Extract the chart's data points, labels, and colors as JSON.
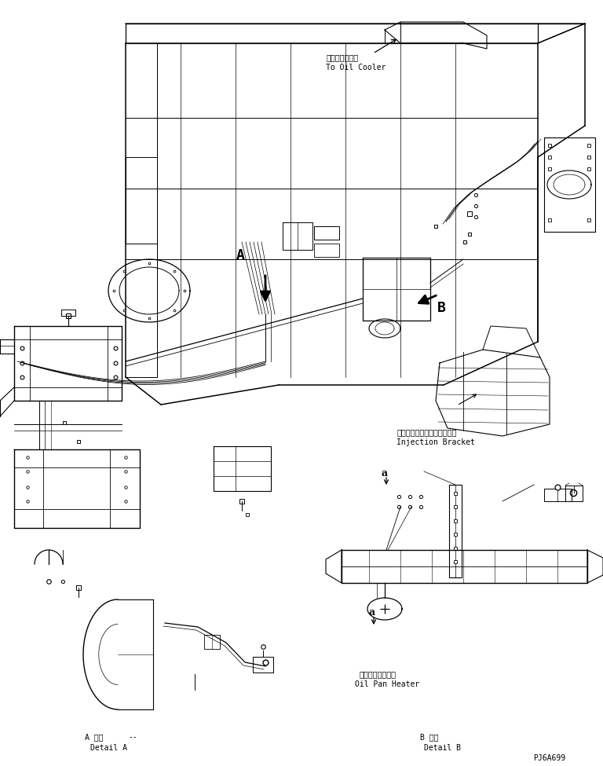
{
  "fig_width": 7.68,
  "fig_height": 9.75,
  "dpi": 100,
  "bg_color": "#ffffff",
  "line_color": "#000000",
  "labels": {
    "oil_cooler_jp": "オイルクーラヘ",
    "oil_cooler_en": "To Oil Cooler",
    "injection_bracket_jp": "インジェクションブラケット",
    "injection_bracket_en": "Injection Bracket",
    "oil_pan_heater_jp": "オイルパンヒータ",
    "oil_pan_heater_en": "Oil Pan Heater",
    "detail_a_jp": "A 詳細",
    "detail_a_dash": "--",
    "detail_a_en": "Detail A",
    "detail_b_jp": "B 詳細",
    "detail_b_en": "Detail B",
    "part_num": "PJ6A699",
    "label_A": "A",
    "label_B": "B",
    "label_a1": "a",
    "label_a2": "a"
  },
  "font_sizes": {
    "jp": 7,
    "en": 7,
    "label_AB": 13,
    "label_a": 9,
    "part_num": 7
  }
}
